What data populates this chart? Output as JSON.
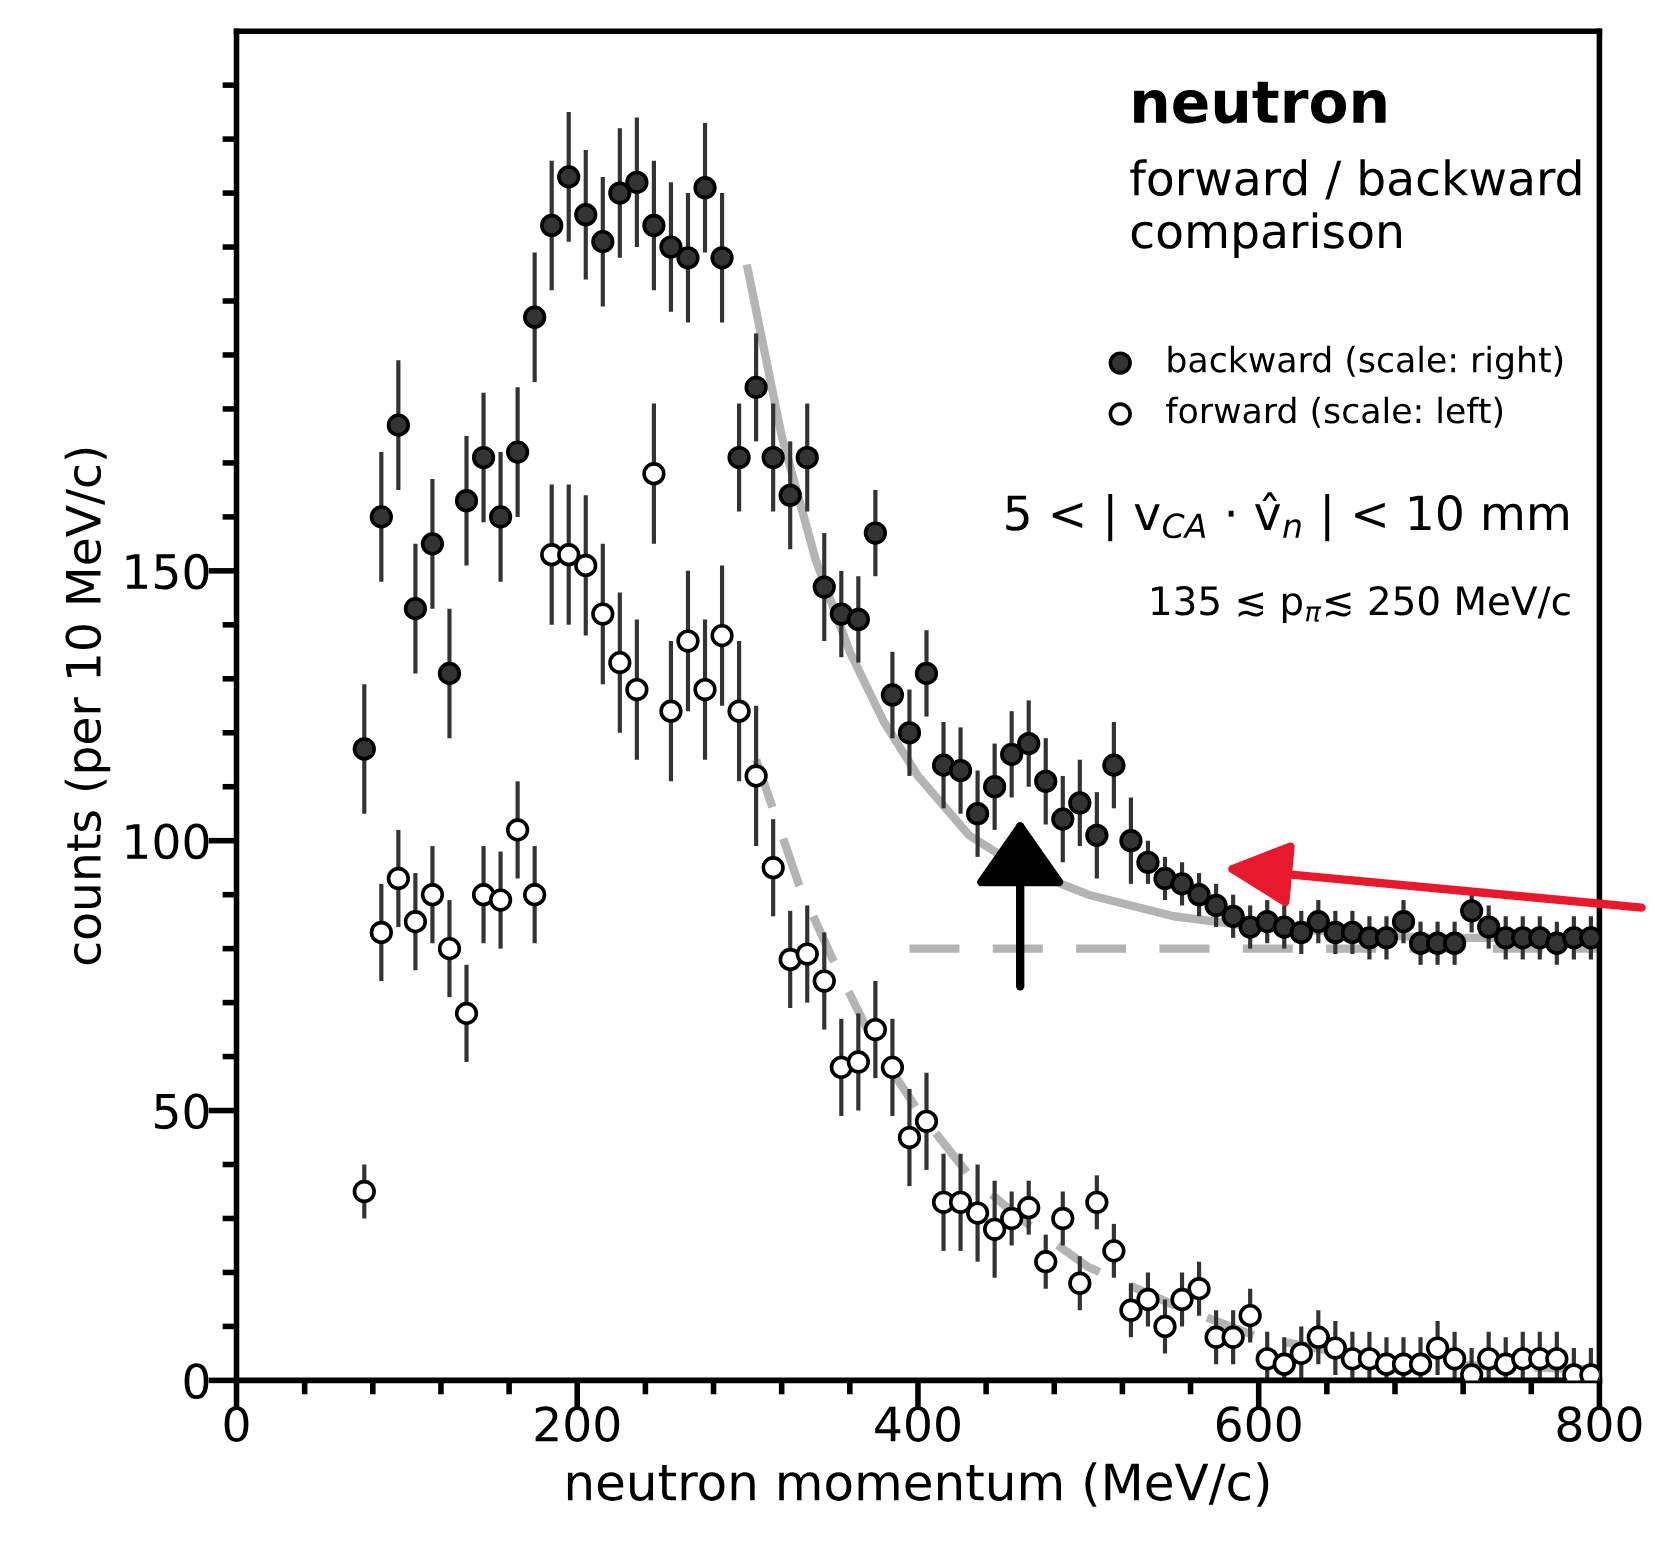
{
  "chart_data": {
    "type": "scatter",
    "title": "neutron",
    "subtitle": "forward / backward comparison",
    "xlabel": "neutron momentum (MeV/c)",
    "ylabel": "counts (per 10 MeV/c)",
    "xlim": [
      0,
      800
    ],
    "ylim": [
      0,
      250
    ],
    "xticks": [
      0,
      {
        "value": 40,
        "label": null
      },
      {
        "value": 80,
        "label": null
      },
      {
        "value": 120,
        "label": null
      },
      {
        "value": 160,
        "label": null
      },
      200,
      {
        "value": 240,
        "label": null
      },
      {
        "value": 280,
        "label": null
      },
      {
        "value": 320,
        "label": null
      },
      {
        "value": 360,
        "label": null
      },
      400,
      {
        "value": 440,
        "label": null
      },
      {
        "value": 480,
        "label": null
      },
      {
        "value": 520,
        "label": null
      },
      {
        "value": 560,
        "label": null
      },
      600,
      {
        "value": 640,
        "label": null
      },
      {
        "value": 680,
        "label": null
      },
      {
        "value": 720,
        "label": null
      },
      {
        "value": 760,
        "label": null
      },
      800
    ],
    "yticks": [
      0,
      {
        "value": 10,
        "label": null
      },
      {
        "value": 20,
        "label": null
      },
      {
        "value": 30,
        "label": null
      },
      {
        "value": 40,
        "label": null
      },
      50,
      {
        "value": 60,
        "label": null
      },
      {
        "value": 70,
        "label": null
      },
      {
        "value": 80,
        "label": null
      },
      {
        "value": 90,
        "label": null
      },
      100,
      {
        "value": 110,
        "label": null
      },
      {
        "value": 120,
        "label": null
      },
      {
        "value": 130,
        "label": null
      },
      {
        "value": 140,
        "label": null
      },
      150,
      {
        "value": 160,
        "label": null
      },
      {
        "value": 170,
        "label": null
      },
      {
        "value": 180,
        "label": null
      },
      {
        "value": 190,
        "label": null
      },
      {
        "value": 200,
        "label": null
      },
      {
        "value": 210,
        "label": null
      },
      {
        "value": 220,
        "label": null
      },
      {
        "value": 230,
        "label": null
      },
      {
        "value": 240,
        "label": null
      }
    ],
    "legend": "top right",
    "annotations": [
      "5 < | v$_{CA}$ · v̂$_{n}$ | < 10 mm",
      "135 ≲ p$_{π}$≲ 250 MeV/c"
    ],
    "series": [
      {
        "name": "backward (scale: right)",
        "marker": "circle",
        "color": "#333333",
        "x": [
          75,
          85,
          95,
          105,
          115,
          125,
          135,
          145,
          155,
          165,
          175,
          185,
          195,
          205,
          215,
          225,
          235,
          245,
          255,
          265,
          275,
          285,
          295,
          305,
          315,
          325,
          335,
          345,
          355,
          365,
          375,
          385,
          395,
          405,
          415,
          425,
          435,
          445,
          455,
          465,
          475,
          485,
          495,
          505,
          515,
          525,
          535,
          545,
          555,
          565,
          575,
          585,
          595,
          605,
          615,
          625,
          635,
          645,
          655,
          665,
          675,
          685,
          695,
          705,
          715,
          725,
          735,
          745,
          755,
          765,
          775,
          785,
          795
        ],
        "values": [
          117,
          160,
          177,
          143,
          155,
          131,
          163,
          171,
          160,
          172,
          197,
          214,
          223,
          216,
          211,
          220,
          222,
          214,
          210,
          208,
          221,
          208,
          171,
          184,
          171,
          164,
          171,
          147,
          142,
          141,
          157,
          127,
          120,
          131,
          114,
          113,
          105,
          110,
          116,
          118,
          111,
          104,
          107,
          101,
          114,
          100,
          96,
          93,
          92,
          90,
          88,
          86,
          84,
          85,
          84,
          83,
          85,
          83,
          83,
          82,
          82,
          85,
          81,
          81,
          81,
          87,
          84,
          82,
          82,
          82,
          81,
          82,
          82
        ],
        "errors": [
          12,
          12,
          12,
          12,
          12,
          12,
          12,
          12,
          12,
          12,
          12,
          12,
          12,
          12,
          12,
          12,
          12,
          12,
          12,
          12,
          12,
          12,
          10,
          10,
          10,
          10,
          10,
          10,
          8,
          8,
          8,
          8,
          8,
          8,
          8,
          8,
          8,
          8,
          8,
          8,
          8,
          8,
          8,
          8,
          8,
          8,
          4,
          4,
          4,
          4,
          4,
          4,
          4,
          4,
          4,
          4,
          4,
          4,
          4,
          4,
          4,
          4,
          4,
          4,
          4,
          4,
          4,
          4,
          4,
          4,
          4,
          4,
          4
        ]
      },
      {
        "name": "forward (scale: left)",
        "marker": "circle",
        "color": "#ffffff",
        "x": [
          75,
          85,
          95,
          105,
          115,
          125,
          135,
          145,
          155,
          165,
          175,
          185,
          195,
          205,
          215,
          225,
          235,
          245,
          255,
          265,
          275,
          285,
          295,
          305,
          315,
          325,
          335,
          345,
          355,
          365,
          375,
          385,
          395,
          405,
          415,
          425,
          435,
          445,
          455,
          465,
          475,
          485,
          495,
          505,
          515,
          525,
          535,
          545,
          555,
          565,
          575,
          585,
          595,
          605,
          615,
          625,
          635,
          645,
          655,
          665,
          675,
          685,
          695,
          705,
          715,
          725,
          735,
          745,
          755,
          765,
          775,
          785,
          795
        ],
        "values": [
          35,
          83,
          93,
          85,
          90,
          80,
          68,
          90,
          89,
          102,
          90,
          153,
          153,
          151,
          142,
          133,
          128,
          168,
          124,
          137,
          128,
          138,
          124,
          112,
          95,
          78,
          79,
          74,
          58,
          59,
          65,
          58,
          45,
          48,
          33,
          33,
          31,
          28,
          30,
          32,
          22,
          30,
          18,
          33,
          24,
          13,
          15,
          10,
          15,
          17,
          8,
          8,
          12,
          4,
          3,
          5,
          8,
          6,
          4,
          4,
          3,
          3,
          3,
          6,
          4,
          1,
          4,
          3,
          4,
          4,
          4,
          1,
          1
        ],
        "errors": [
          5,
          9,
          9,
          9,
          9,
          9,
          9,
          9,
          9,
          9,
          9,
          13,
          13,
          13,
          13,
          13,
          13,
          13,
          13,
          13,
          13,
          13,
          13,
          13,
          9,
          9,
          9,
          9,
          9,
          9,
          9,
          9,
          9,
          9,
          9,
          9,
          9,
          9,
          5,
          5,
          5,
          5,
          5,
          5,
          5,
          5,
          5,
          5,
          5,
          5,
          5,
          5,
          5,
          5,
          5,
          5,
          5,
          5,
          5,
          5,
          5,
          5,
          5,
          5,
          5,
          5,
          5,
          5,
          5,
          5,
          5,
          5,
          5
        ]
      },
      {
        "type": "line",
        "marker": "none",
        "line_style": "solid",
        "color": "#b4b4b4",
        "x": [
          300,
          320,
          340,
          360,
          380,
          400,
          430,
          460,
          500,
          550,
          600,
          650,
          700,
          800
        ],
        "values": [
          206,
          175,
          152,
          135,
          122,
          112,
          101,
          95,
          90,
          86,
          84,
          83,
          82,
          82
        ]
      },
      {
        "type": "line",
        "marker": "none",
        "line_style": "dashed",
        "color": "#b4b4b4",
        "x": [
          305,
          330,
          350,
          375,
          400,
          430,
          460,
          500,
          550,
          600,
          650,
          700,
          800
        ],
        "values": [
          115,
          92,
          78,
          62,
          50,
          38,
          30,
          21,
          14,
          8,
          5,
          3,
          2
        ]
      },
      {
        "type": "line",
        "marker": "none",
        "line_style": "dashed",
        "color": "#b4b4b4",
        "x": [
          395,
          800
        ],
        "values": [
          80,
          80
        ]
      }
    ]
  }
}
